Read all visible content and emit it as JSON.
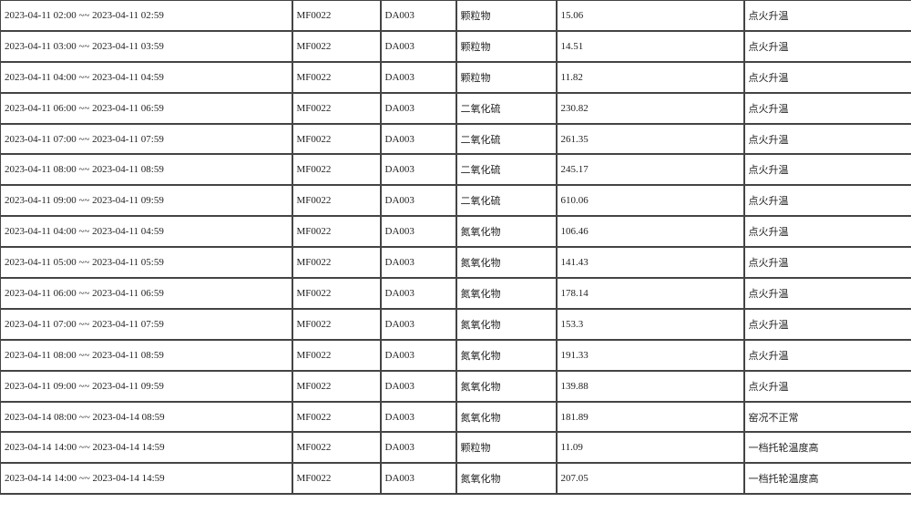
{
  "table": {
    "rows": [
      [
        "2023-04-11 02:00 ~~ 2023-04-11 02:59",
        "MF0022",
        "DA003",
        "颗粒物",
        "15.06",
        "点火升温"
      ],
      [
        "2023-04-11 03:00 ~~ 2023-04-11 03:59",
        "MF0022",
        "DA003",
        "颗粒物",
        "14.51",
        "点火升温"
      ],
      [
        "2023-04-11 04:00 ~~ 2023-04-11 04:59",
        "MF0022",
        "DA003",
        "颗粒物",
        "11.82",
        "点火升温"
      ],
      [
        "2023-04-11 06:00 ~~ 2023-04-11 06:59",
        "MF0022",
        "DA003",
        "二氧化硫",
        "230.82",
        "点火升温"
      ],
      [
        "2023-04-11 07:00 ~~ 2023-04-11 07:59",
        "MF0022",
        "DA003",
        "二氧化硫",
        "261.35",
        "点火升温"
      ],
      [
        "2023-04-11 08:00 ~~ 2023-04-11 08:59",
        "MF0022",
        "DA003",
        "二氧化硫",
        "245.17",
        "点火升温"
      ],
      [
        "2023-04-11 09:00 ~~ 2023-04-11 09:59",
        "MF0022",
        "DA003",
        "二氧化硫",
        "610.06",
        "点火升温"
      ],
      [
        "2023-04-11 04:00 ~~ 2023-04-11 04:59",
        "MF0022",
        "DA003",
        "氮氧化物",
        "106.46",
        "点火升温"
      ],
      [
        "2023-04-11 05:00 ~~ 2023-04-11 05:59",
        "MF0022",
        "DA003",
        "氮氧化物",
        "141.43",
        "点火升温"
      ],
      [
        "2023-04-11 06:00 ~~ 2023-04-11 06:59",
        "MF0022",
        "DA003",
        "氮氧化物",
        "178.14",
        "点火升温"
      ],
      [
        "2023-04-11 07:00 ~~ 2023-04-11 07:59",
        "MF0022",
        "DA003",
        "氮氧化物",
        "153.3",
        "点火升温"
      ],
      [
        "2023-04-11 08:00 ~~ 2023-04-11 08:59",
        "MF0022",
        "DA003",
        "氮氧化物",
        "191.33",
        "点火升温"
      ],
      [
        "2023-04-11 09:00 ~~ 2023-04-11 09:59",
        "MF0022",
        "DA003",
        "氮氧化物",
        "139.88",
        "点火升温"
      ],
      [
        "2023-04-14 08:00 ~~ 2023-04-14 08:59",
        "MF0022",
        "DA003",
        "氮氧化物",
        "181.89",
        "窑况不正常"
      ],
      [
        "2023-04-14 14:00 ~~ 2023-04-14 14:59",
        "MF0022",
        "DA003",
        "颗粒物",
        "11.09",
        "一档托轮温度高"
      ],
      [
        "2023-04-14 14:00 ~~ 2023-04-14 14:59",
        "MF0022",
        "DA003",
        "氮氧化物",
        "207.05",
        "一档托轮温度高"
      ]
    ]
  }
}
